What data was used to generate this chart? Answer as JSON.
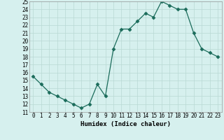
{
  "title": "",
  "xlabel": "Humidex (Indice chaleur)",
  "ylabel": "",
  "x": [
    0,
    1,
    2,
    3,
    4,
    5,
    6,
    7,
    8,
    9,
    10,
    11,
    12,
    13,
    14,
    15,
    16,
    17,
    18,
    19,
    20,
    21,
    22,
    23
  ],
  "y": [
    15.5,
    14.5,
    13.5,
    13.0,
    12.5,
    12.0,
    11.5,
    12.0,
    14.5,
    13.0,
    19.0,
    21.5,
    21.5,
    22.5,
    23.5,
    23.0,
    25.0,
    24.5,
    24.0,
    24.0,
    21.0,
    19.0,
    18.5,
    18.0
  ],
  "line_color": "#1a6b5a",
  "marker": "D",
  "marker_size": 2.5,
  "bg_color": "#d6f0ee",
  "grid_color": "#b8d8d4",
  "ylim": [
    11,
    25
  ],
  "xlim": [
    -0.5,
    23.5
  ],
  "yticks": [
    11,
    12,
    13,
    14,
    15,
    16,
    17,
    18,
    19,
    20,
    21,
    22,
    23,
    24,
    25
  ],
  "xticks": [
    0,
    1,
    2,
    3,
    4,
    5,
    6,
    7,
    8,
    9,
    10,
    11,
    12,
    13,
    14,
    15,
    16,
    17,
    18,
    19,
    20,
    21,
    22,
    23
  ],
  "xlabel_fontsize": 6.5,
  "tick_fontsize": 5.5
}
